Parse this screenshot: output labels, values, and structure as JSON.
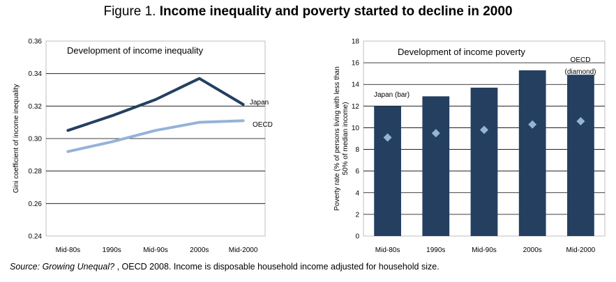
{
  "figure": {
    "label": "Figure 1.",
    "title": "Income inequality and poverty started to decline in 2000"
  },
  "source": {
    "prefix": "Source: ",
    "italic": "Growing Unequal?",
    "rest": " , OECD 2008. Income is disposable household income adjusted for household size."
  },
  "colors": {
    "japan": "#243f60",
    "oecd": "#95b3d7",
    "grid": "#000000"
  },
  "chart_data": [
    {
      "type": "line",
      "title": "Development of income inequality",
      "ylabel": "Gini coefficient of income inequality",
      "xlabel": "",
      "categories": [
        "Mid-80s",
        "1990s",
        "Mid-90s",
        "2000s",
        "Mid-2000"
      ],
      "ylim": [
        0.24,
        0.36
      ],
      "yticks": [
        "0.24",
        "0.26",
        "0.28",
        "0.30",
        "0.32",
        "0.34",
        "0.36"
      ],
      "grid": true,
      "series": [
        {
          "name": "Japan",
          "values": [
            0.305,
            0.314,
            0.324,
            0.337,
            0.321
          ]
        },
        {
          "name": "OECD",
          "values": [
            0.292,
            0.298,
            0.305,
            0.31,
            0.311
          ]
        }
      ]
    },
    {
      "type": "bar",
      "title": "Development of income poverty",
      "ylabel": "Poverty rate (% of persons living with less than 50% of median income)",
      "xlabel": "",
      "categories": [
        "Mid-80s",
        "1990s",
        "Mid-90s",
        "2000s",
        "Mid-2000"
      ],
      "ylim": [
        0,
        18
      ],
      "yticks": [
        "0",
        "2",
        "4",
        "6",
        "8",
        "10",
        "12",
        "14",
        "16",
        "18"
      ],
      "grid": true,
      "series": [
        {
          "name": "Japan (bar)",
          "values": [
            12.0,
            12.9,
            13.7,
            15.3,
            14.9
          ]
        },
        {
          "name": "OECD (diamond)",
          "values": [
            9.1,
            9.5,
            9.8,
            10.3,
            10.6
          ]
        }
      ],
      "ylabel_lines": [
        "Poverty rate (% of persons living with less than",
        "50% of median income)"
      ],
      "oecd_label_lines": [
        "OECD",
        "(diamond)"
      ]
    }
  ]
}
